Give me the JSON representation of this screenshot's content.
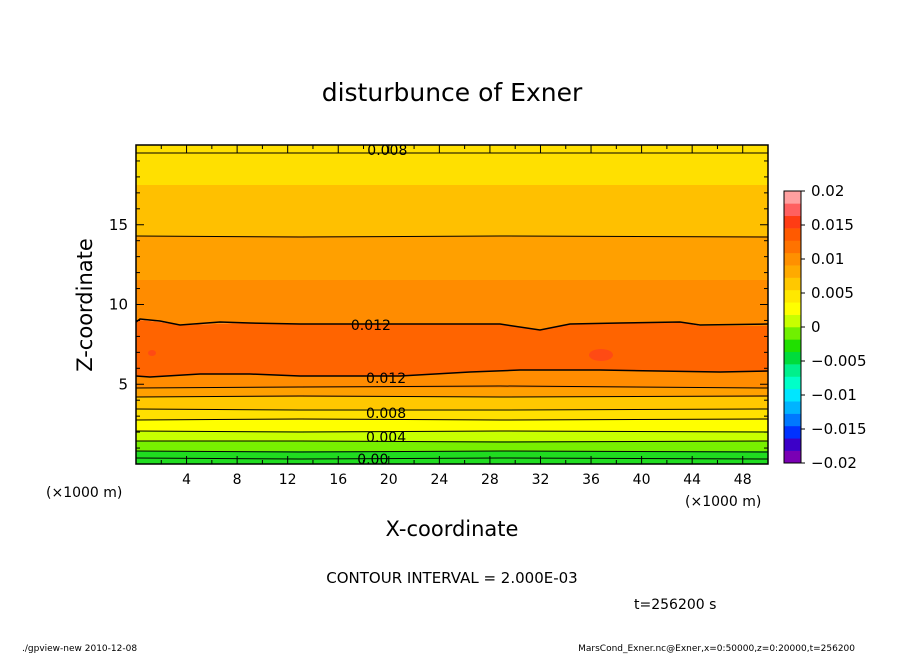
{
  "chart_data": {
    "type": "heatmap",
    "title": "disturbunce of Exner",
    "xlabel": "X-coordinate",
    "ylabel": "Z-coordinate",
    "x_unit_left": "(×1000 m)",
    "x_unit_right": "(×1000 m)",
    "xlim": [
      0,
      50
    ],
    "ylim": [
      0,
      20
    ],
    "x_ticks": [
      "4",
      "8",
      "12",
      "16",
      "20",
      "24",
      "28",
      "32",
      "36",
      "40",
      "44",
      "48"
    ],
    "y_ticks": [
      "5",
      "10",
      "15"
    ],
    "colorbar": {
      "range": [
        -0.02,
        0.02
      ],
      "tick_labels": [
        "0.02",
        "0.015",
        "0.01",
        "0.005",
        "0",
        "−0.005",
        "−0.01",
        "−0.015",
        "−0.02"
      ],
      "colors": [
        "#7a00b4",
        "#3c00c8",
        "#0032ff",
        "#0078ff",
        "#00b4ff",
        "#00e6ff",
        "#00ffc8",
        "#00f08c",
        "#00dc3c",
        "#20e000",
        "#70f000",
        "#c8ff00",
        "#ffff00",
        "#ffe800",
        "#ffc800",
        "#ffaa00",
        "#ff9000",
        "#ff7300",
        "#ff5a00",
        "#ff3c14",
        "#ff6060",
        "#ffa0a0"
      ]
    },
    "contour_labels": [
      {
        "text": "0.008",
        "x": 18.3,
        "z": 19.7
      },
      {
        "text": "0.012",
        "x": 17.0,
        "z": 8.7
      },
      {
        "text": "0.012",
        "x": 18.2,
        "z": 5.4
      },
      {
        "text": "0.008",
        "x": 18.2,
        "z": 3.2
      },
      {
        "text": "0.004",
        "x": 18.2,
        "z": 1.7
      },
      {
        "text": "0.00",
        "x": 17.5,
        "z": 0.3
      }
    ],
    "contour_interval": "CONTOUR INTERVAL = 2.000E-03",
    "time": "t=256200 s"
  },
  "footer": {
    "left": "./gpview-new  2010-12-08",
    "right": "MarsCond_Exner.nc@Exner,x=0:50000,z=0:20000,t=256200"
  }
}
